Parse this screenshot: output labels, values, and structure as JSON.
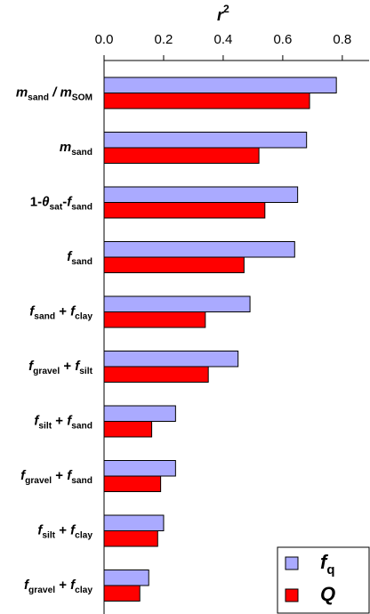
{
  "chart_data": {
    "type": "bar",
    "orientation": "horizontal",
    "x_label": [
      {
        "text": "r"
      },
      {
        "sup": "2"
      }
    ],
    "categories": [
      [
        {
          "text": "m"
        },
        {
          "sub": "sand"
        },
        {
          "text": " / m"
        },
        {
          "sub": "SOM"
        }
      ],
      [
        {
          "text": "m"
        },
        {
          "sub": "sand"
        }
      ],
      [
        {
          "plain": "1-"
        },
        {
          "text": "θ"
        },
        {
          "sub": "sat"
        },
        {
          "plain": "-"
        },
        {
          "text": "f"
        },
        {
          "sub": "sand"
        }
      ],
      [
        {
          "text": "f"
        },
        {
          "sub": "sand"
        }
      ],
      [
        {
          "text": "f"
        },
        {
          "sub": "sand"
        },
        {
          "plain": " + "
        },
        {
          "text": "f"
        },
        {
          "sub": "clay"
        }
      ],
      [
        {
          "text": "f"
        },
        {
          "sub": "gravel"
        },
        {
          "plain": " + "
        },
        {
          "text": "f"
        },
        {
          "sub": "silt"
        }
      ],
      [
        {
          "text": "f"
        },
        {
          "sub": "silt"
        },
        {
          "plain": " + "
        },
        {
          "text": "f"
        },
        {
          "sub": "sand"
        }
      ],
      [
        {
          "text": "f"
        },
        {
          "sub": "gravel"
        },
        {
          "plain": " + "
        },
        {
          "text": "f"
        },
        {
          "sub": "sand"
        }
      ],
      [
        {
          "text": "f"
        },
        {
          "sub": "silt"
        },
        {
          "plain": " + "
        },
        {
          "text": "f"
        },
        {
          "sub": "clay"
        }
      ],
      [
        {
          "text": "f"
        },
        {
          "sub": "gravel"
        },
        {
          "plain": " + "
        },
        {
          "text": "f"
        },
        {
          "sub": "clay"
        }
      ]
    ],
    "series": [
      {
        "name": [
          {
            "text": "f"
          },
          {
            "sub": "q"
          }
        ],
        "color": "#aaaaff",
        "values": [
          0.78,
          0.68,
          0.65,
          0.64,
          0.49,
          0.45,
          0.24,
          0.24,
          0.2,
          0.15
        ]
      },
      {
        "name": [
          {
            "text": "Q"
          }
        ],
        "color": "#ff0000",
        "values": [
          0.69,
          0.52,
          0.54,
          0.47,
          0.34,
          0.35,
          0.16,
          0.19,
          0.18,
          0.12
        ]
      }
    ],
    "xlim": [
      0,
      0.89
    ],
    "xticks": [
      {
        "value": 0,
        "label": "0.0"
      },
      0.2,
      0.4,
      0.6,
      0.8
    ],
    "legend": "bottom-right"
  }
}
